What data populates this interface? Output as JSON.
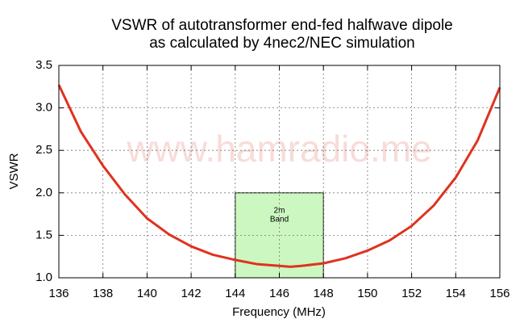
{
  "chart_data": {
    "type": "line",
    "title_lines": [
      "VSWR of autotransformer end-fed halfwave dipole",
      "as calculated by 4nec2/NEC simulation"
    ],
    "x_label": "Frequency (MHz)",
    "y_label": "VSWR",
    "watermark": "www.hamradio.me",
    "x": [
      136,
      137,
      138,
      139,
      140,
      141,
      142,
      143,
      144,
      145,
      146,
      146.5,
      147,
      148,
      149,
      150,
      151,
      152,
      153,
      154,
      155,
      156
    ],
    "series": [
      {
        "name": "VSWR",
        "color": "#e0321e",
        "values": [
          3.27,
          2.72,
          2.32,
          1.98,
          1.7,
          1.51,
          1.37,
          1.27,
          1.21,
          1.16,
          1.14,
          1.13,
          1.14,
          1.17,
          1.23,
          1.32,
          1.44,
          1.61,
          1.85,
          2.18,
          2.62,
          3.24
        ]
      }
    ],
    "xlim": [
      136,
      156
    ],
    "xticks": [
      136,
      138,
      140,
      142,
      144,
      146,
      148,
      150,
      152,
      154,
      156
    ],
    "ylim": [
      1,
      3.5
    ],
    "yticks": [
      {
        "value": 1,
        "label": "1.0"
      },
      1.5,
      {
        "value": 2,
        "label": "2.0"
      },
      2.5,
      {
        "value": 3,
        "label": "3.0"
      },
      3.5
    ],
    "grid": true,
    "shaded_region": {
      "x": [
        144,
        148
      ],
      "y": [
        1,
        2
      ],
      "label_lines": [
        "2m",
        "Band"
      ],
      "color": "#ccf7c0"
    }
  }
}
